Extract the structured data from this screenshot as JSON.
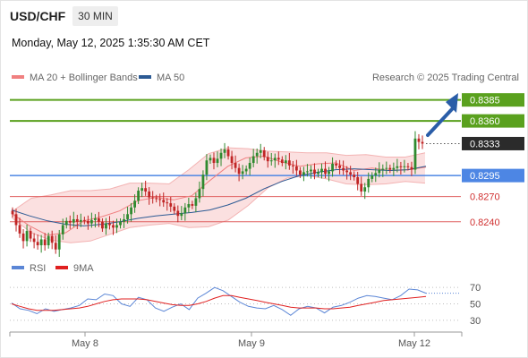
{
  "header": {
    "pair": "USD/CHF",
    "timeframe": "30 MIN",
    "datetime": "Monday, May 12, 2025 1:35:30 AM CET",
    "copyright": "Research © 2025 Trading Central"
  },
  "legend": {
    "ma20": {
      "label": "MA 20 + Bollinger Bands",
      "color": "#f08080"
    },
    "ma50": {
      "label": "MA 50",
      "color": "#2c5a94"
    },
    "rsi": {
      "label": "RSI",
      "color": "#5b86d6"
    },
    "ma9": {
      "label": "9MA",
      "color": "#e02020"
    }
  },
  "colors": {
    "resistance": "#5aa11e",
    "pivot": "#4d86e4",
    "support": "#e06060",
    "current": "#2b2b2b",
    "arrow": "#2a5da8",
    "candle_up": "#2f8a2f",
    "candle_down": "#c02525",
    "band_fill": "#fbe0e0"
  },
  "levels": [
    {
      "name": "resistance-2",
      "value": 0.8385,
      "label": "0.8385",
      "kind": "resistance"
    },
    {
      "name": "resistance-1",
      "value": 0.836,
      "label": "0.8360",
      "kind": "resistance"
    },
    {
      "name": "current-price",
      "value": 0.8333,
      "label": "0.8333",
      "kind": "current"
    },
    {
      "name": "pivot",
      "value": 0.8295,
      "label": "0.8295",
      "kind": "pivot"
    },
    {
      "name": "support-1",
      "value": 0.827,
      "label": "0.8270",
      "kind": "support"
    },
    {
      "name": "support-2",
      "value": 0.824,
      "label": "0.8240",
      "kind": "support"
    }
  ],
  "chart_data": [
    {
      "type": "candlestick",
      "title": "",
      "xlabel": "",
      "ylabel": "",
      "ylim": [
        0.8195,
        0.844
      ],
      "x_ticks": [
        "May 8",
        "May 9",
        "May 12"
      ],
      "grid": false,
      "legend_placement": "top-left",
      "series": [
        {
          "name": "USD/CHF",
          "close_path": [
            0.8249,
            0.8236,
            0.8226,
            0.8217,
            0.8229,
            0.822,
            0.8216,
            0.8212,
            0.8219,
            0.8212,
            0.8223,
            0.8215,
            0.8207,
            0.8225,
            0.8236,
            0.8241,
            0.8239,
            0.8243,
            0.824,
            0.8242,
            0.8241,
            0.8238,
            0.8242,
            0.8244,
            0.824,
            0.8232,
            0.8238,
            0.8236,
            0.8233,
            0.8236,
            0.824,
            0.8243,
            0.8249,
            0.8257,
            0.8265,
            0.8277,
            0.828,
            0.8276,
            0.8269,
            0.8268,
            0.8267,
            0.8266,
            0.8263,
            0.8262,
            0.8258,
            0.8253,
            0.8247,
            0.825,
            0.8257,
            0.8261,
            0.8259,
            0.8268,
            0.8279,
            0.8296,
            0.8313,
            0.8316,
            0.831,
            0.8315,
            0.8322,
            0.8326,
            0.8318,
            0.831,
            0.8304,
            0.8297,
            0.83,
            0.8303,
            0.831,
            0.8318,
            0.8322,
            0.8325,
            0.8317,
            0.8312,
            0.8313,
            0.8316,
            0.8314,
            0.831,
            0.8313,
            0.8307,
            0.8306,
            0.8301,
            0.8296,
            0.8299,
            0.83,
            0.8302,
            0.8297,
            0.8299,
            0.8303,
            0.8297,
            0.83,
            0.8309,
            0.8307,
            0.8304,
            0.8301,
            0.8299,
            0.8296,
            0.8293,
            0.8285,
            0.8276,
            0.8281,
            0.8291,
            0.8295,
            0.8298,
            0.8302,
            0.8303,
            0.8304,
            0.8302,
            0.8304,
            0.8306,
            0.8305,
            0.8306,
            0.8305,
            0.8302,
            0.8339,
            0.8335,
            0.8333
          ]
        },
        {
          "name": "MA 20",
          "path": [
            0.825,
            0.8235,
            0.8224,
            0.8227,
            0.8241,
            0.8246,
            0.8253,
            0.8265,
            0.8269,
            0.8266,
            0.8271,
            0.8289,
            0.8306,
            0.8316,
            0.8318,
            0.8311,
            0.8306,
            0.8309,
            0.831,
            0.8301,
            0.8304,
            0.8301,
            0.8302,
            0.8305
          ]
        },
        {
          "name": "Bollinger upper",
          "path": [
            0.8252,
            0.8268,
            0.8272,
            0.8277,
            0.8277,
            0.8279,
            0.8286,
            0.8286,
            0.8285,
            0.8302,
            0.8321,
            0.8328,
            0.8327,
            0.8324,
            0.8323,
            0.8322,
            0.8322,
            0.8319,
            0.832,
            0.8317,
            0.8317,
            0.8322
          ]
        },
        {
          "name": "Bollinger lower",
          "path": [
            0.8245,
            0.8227,
            0.8218,
            0.8215,
            0.8217,
            0.8225,
            0.8233,
            0.8236,
            0.8238,
            0.8233,
            0.8234,
            0.8242,
            0.8259,
            0.828,
            0.8292,
            0.8295,
            0.8291,
            0.8285,
            0.8284,
            0.8285,
            0.8288,
            0.8286
          ]
        },
        {
          "name": "MA 50",
          "path": [
            0.8254,
            0.8247,
            0.8241,
            0.8237,
            0.8235,
            0.8237,
            0.824,
            0.8244,
            0.8247,
            0.8249,
            0.8251,
            0.8254,
            0.826,
            0.8268,
            0.8279,
            0.8288,
            0.8295,
            0.8299,
            0.8302,
            0.8303,
            0.8302,
            0.8301,
            0.8302,
            0.8306
          ]
        }
      ]
    },
    {
      "type": "line",
      "title": "",
      "xlabel": "",
      "ylabel": "",
      "ylim": [
        20,
        80
      ],
      "y_ticks": [
        70,
        50,
        30
      ],
      "grid": false,
      "series": [
        {
          "name": "RSI",
          "values": [
            51,
            44,
            42,
            38,
            44,
            41,
            43,
            45,
            48,
            56,
            55,
            62,
            60,
            50,
            47,
            58,
            55,
            45,
            41,
            46,
            50,
            43,
            57,
            63,
            70,
            66,
            59,
            52,
            47,
            45,
            44,
            48,
            43,
            36,
            44,
            47,
            45,
            39,
            46,
            48,
            52,
            57,
            60,
            59,
            57,
            55,
            60,
            68,
            67,
            63
          ]
        },
        {
          "name": "9MA",
          "values": [
            50,
            47,
            44,
            42,
            42,
            42,
            43,
            44,
            45,
            47,
            50,
            53,
            55,
            56,
            56,
            56,
            55,
            53,
            51,
            49,
            48,
            48,
            50,
            53,
            57,
            60,
            60,
            58,
            56,
            54,
            52,
            50,
            48,
            46,
            45,
            45,
            45,
            44,
            44,
            45,
            46,
            48,
            50,
            52,
            54,
            55,
            56,
            57,
            58,
            59
          ]
        }
      ]
    }
  ]
}
